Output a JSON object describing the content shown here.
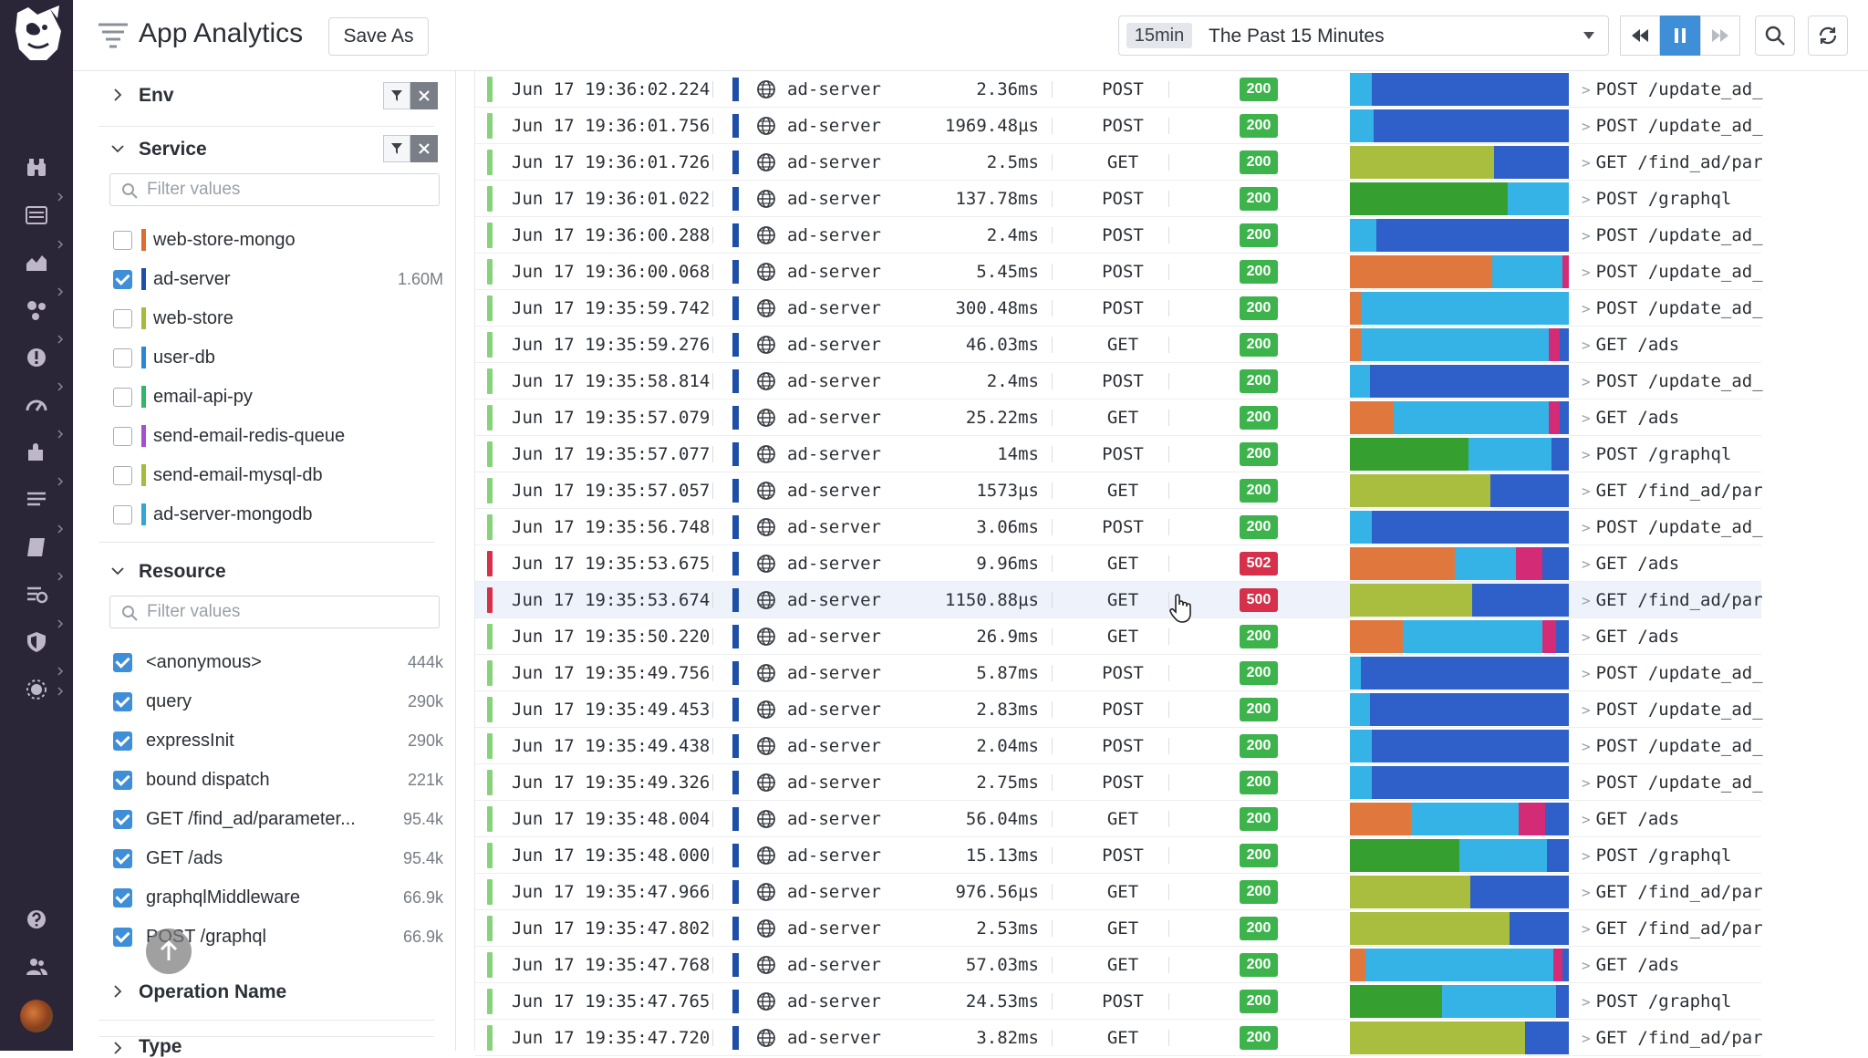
{
  "header": {
    "title": "App Analytics",
    "save_as_label": "Save As",
    "time_chip": "15min",
    "time_range": "The Past 15 Minutes"
  },
  "rail": {
    "icons": [
      "binoculars-icon",
      "list-icon",
      "chart-icon",
      "services-icon",
      "alert-icon",
      "gauge-icon",
      "puzzle-icon",
      "logs-icon",
      "notebook-icon",
      "apm-icon",
      "shield-icon",
      "security-icon",
      "help-icon",
      "team-icon"
    ]
  },
  "facets": {
    "env": {
      "title": "Env"
    },
    "service": {
      "title": "Service",
      "filter_placeholder": "Filter values",
      "items": [
        {
          "label": "web-store-mongo",
          "checked": false,
          "color": "#e06b2f",
          "count": ""
        },
        {
          "label": "ad-server",
          "checked": true,
          "color": "#1e4fa8",
          "count": "1.60M"
        },
        {
          "label": "web-store",
          "checked": false,
          "color": "#a3bd3a",
          "count": ""
        },
        {
          "label": "user-db",
          "checked": false,
          "color": "#2b86d8",
          "count": ""
        },
        {
          "label": "email-api-py",
          "checked": false,
          "color": "#2fb86a",
          "count": ""
        },
        {
          "label": "send-email-redis-queue",
          "checked": false,
          "color": "#a64fd0",
          "count": ""
        },
        {
          "label": "send-email-mysql-db",
          "checked": false,
          "color": "#a3bd3a",
          "count": ""
        },
        {
          "label": "ad-server-mongodb",
          "checked": false,
          "color": "#2fa8d8",
          "count": ""
        }
      ]
    },
    "resource": {
      "title": "Resource",
      "filter_placeholder": "Filter values",
      "items": [
        {
          "label": "<anonymous>",
          "checked": true,
          "count": "444k"
        },
        {
          "label": "query",
          "checked": true,
          "count": "290k"
        },
        {
          "label": "expressInit",
          "checked": true,
          "count": "290k"
        },
        {
          "label": "bound dispatch",
          "checked": true,
          "count": "221k"
        },
        {
          "label": "GET /find_ad/parameter...",
          "checked": true,
          "count": "95.4k"
        },
        {
          "label": "GET /ads",
          "checked": true,
          "count": "95.4k"
        },
        {
          "label": "graphqlMiddleware",
          "checked": true,
          "count": "66.9k"
        },
        {
          "label": "POST /graphql",
          "checked": true,
          "count": "66.9k"
        }
      ]
    },
    "operation": {
      "title": "Operation Name"
    },
    "type": {
      "title": "Type"
    }
  },
  "colors": {
    "blue_dark": "#2f5fc8",
    "blue_light": "#35b3e6",
    "orange": "#e0773d",
    "olive": "#a9bd3f",
    "green": "#35a02f",
    "magenta": "#d42b76",
    "ok": "#3db34c",
    "error": "#d6304a"
  },
  "rows": [
    {
      "date": "Jun 17 19:36:02.224",
      "service": "ad-server",
      "duration": "2.36ms",
      "method": "POST",
      "status": "200",
      "resource": "POST /update_ad_",
      "latency": [
        [
          "lb",
          0.1
        ],
        [
          "bd",
          0.9
        ]
      ]
    },
    {
      "date": "Jun 17 19:36:01.756",
      "service": "ad-server",
      "duration": "1969.48µs",
      "method": "POST",
      "status": "200",
      "resource": "POST /update_ad_",
      "latency": [
        [
          "lb",
          0.11
        ],
        [
          "bd",
          0.89
        ]
      ]
    },
    {
      "date": "Jun 17 19:36:01.726",
      "service": "ad-server",
      "duration": "2.5ms",
      "method": "GET",
      "status": "200",
      "resource": "GET /find_ad/par",
      "latency": [
        [
          "ol",
          0.66
        ],
        [
          "bd",
          0.34
        ]
      ]
    },
    {
      "date": "Jun 17 19:36:01.022",
      "service": "ad-server",
      "duration": "137.78ms",
      "method": "POST",
      "status": "200",
      "resource": "POST /graphql",
      "latency": [
        [
          "gr",
          0.72
        ],
        [
          "lb",
          0.28
        ]
      ]
    },
    {
      "date": "Jun 17 19:36:00.288",
      "service": "ad-server",
      "duration": "2.4ms",
      "method": "POST",
      "status": "200",
      "resource": "POST /update_ad_",
      "latency": [
        [
          "lb",
          0.12
        ],
        [
          "bd",
          0.88
        ]
      ]
    },
    {
      "date": "Jun 17 19:36:00.068",
      "service": "ad-server",
      "duration": "5.45ms",
      "method": "POST",
      "status": "200",
      "resource": "POST /update_ad_",
      "latency": [
        [
          "or",
          0.65
        ],
        [
          "lb",
          0.32
        ],
        [
          "mg",
          0.03
        ]
      ]
    },
    {
      "date": "Jun 17 19:35:59.742",
      "service": "ad-server",
      "duration": "300.48ms",
      "method": "POST",
      "status": "200",
      "resource": "POST /update_ad_",
      "latency": [
        [
          "or",
          0.05
        ],
        [
          "lb",
          0.43
        ],
        [
          "lb",
          0.52
        ]
      ]
    },
    {
      "date": "Jun 17 19:35:59.276",
      "service": "ad-server",
      "duration": "46.03ms",
      "method": "GET",
      "status": "200",
      "resource": "GET /ads",
      "latency": [
        [
          "or",
          0.05
        ],
        [
          "lb",
          0.86
        ],
        [
          "mg",
          0.05
        ],
        [
          "bd",
          0.04
        ]
      ]
    },
    {
      "date": "Jun 17 19:35:58.814",
      "service": "ad-server",
      "duration": "2.4ms",
      "method": "POST",
      "status": "200",
      "resource": "POST /update_ad_",
      "latency": [
        [
          "lb",
          0.09
        ],
        [
          "bd",
          0.91
        ]
      ]
    },
    {
      "date": "Jun 17 19:35:57.079",
      "service": "ad-server",
      "duration": "25.22ms",
      "method": "GET",
      "status": "200",
      "resource": "GET /ads",
      "latency": [
        [
          "or",
          0.2
        ],
        [
          "lb",
          0.71
        ],
        [
          "mg",
          0.05
        ],
        [
          "bd",
          0.04
        ]
      ]
    },
    {
      "date": "Jun 17 19:35:57.077",
      "service": "ad-server",
      "duration": "14ms",
      "method": "POST",
      "status": "200",
      "resource": "POST /graphql",
      "latency": [
        [
          "gr",
          0.54
        ],
        [
          "lb",
          0.38
        ],
        [
          "bd",
          0.08
        ]
      ]
    },
    {
      "date": "Jun 17 19:35:57.057",
      "service": "ad-server",
      "duration": "1573µs",
      "method": "GET",
      "status": "200",
      "resource": "GET /find_ad/par",
      "latency": [
        [
          "ol",
          0.64
        ],
        [
          "bd",
          0.36
        ]
      ]
    },
    {
      "date": "Jun 17 19:35:56.748",
      "service": "ad-server",
      "duration": "3.06ms",
      "method": "POST",
      "status": "200",
      "resource": "POST /update_ad_",
      "latency": [
        [
          "lb",
          0.1
        ],
        [
          "bd",
          0.9
        ]
      ]
    },
    {
      "date": "Jun 17 19:35:53.675",
      "service": "ad-server",
      "duration": "9.96ms",
      "method": "GET",
      "status": "502",
      "resource": "GET /ads",
      "latency": [
        [
          "or",
          0.48
        ],
        [
          "lb",
          0.28
        ],
        [
          "mg",
          0.12
        ],
        [
          "bd",
          0.12
        ]
      ]
    },
    {
      "date": "Jun 17 19:35:53.674",
      "service": "ad-server",
      "duration": "1150.88µs",
      "method": "GET",
      "status": "500",
      "resource": "GET /find_ad/par",
      "latency": [
        [
          "ol",
          0.56
        ],
        [
          "bd",
          0.44
        ]
      ]
    },
    {
      "date": "Jun 17 19:35:50.220",
      "service": "ad-server",
      "duration": "26.9ms",
      "method": "GET",
      "status": "200",
      "resource": "GET /ads",
      "latency": [
        [
          "or",
          0.24
        ],
        [
          "lb",
          0.64
        ],
        [
          "mg",
          0.06
        ],
        [
          "bd",
          0.06
        ]
      ]
    },
    {
      "date": "Jun 17 19:35:49.756",
      "service": "ad-server",
      "duration": "5.87ms",
      "method": "POST",
      "status": "200",
      "resource": "POST /update_ad_",
      "latency": [
        [
          "lb",
          0.05
        ],
        [
          "bd",
          0.95
        ]
      ]
    },
    {
      "date": "Jun 17 19:35:49.453",
      "service": "ad-server",
      "duration": "2.83ms",
      "method": "POST",
      "status": "200",
      "resource": "POST /update_ad_",
      "latency": [
        [
          "lb",
          0.09
        ],
        [
          "bd",
          0.91
        ]
      ]
    },
    {
      "date": "Jun 17 19:35:49.438",
      "service": "ad-server",
      "duration": "2.04ms",
      "method": "POST",
      "status": "200",
      "resource": "POST /update_ad_",
      "latency": [
        [
          "lb",
          0.1
        ],
        [
          "bd",
          0.9
        ]
      ]
    },
    {
      "date": "Jun 17 19:35:49.326",
      "service": "ad-server",
      "duration": "2.75ms",
      "method": "POST",
      "status": "200",
      "resource": "POST /update_ad_",
      "latency": [
        [
          "lb",
          0.1
        ],
        [
          "bd",
          0.9
        ]
      ]
    },
    {
      "date": "Jun 17 19:35:48.004",
      "service": "ad-server",
      "duration": "56.04ms",
      "method": "GET",
      "status": "200",
      "resource": "GET /ads",
      "latency": [
        [
          "or",
          0.28
        ],
        [
          "lb",
          0.49
        ],
        [
          "mg",
          0.12
        ],
        [
          "bd",
          0.11
        ]
      ]
    },
    {
      "date": "Jun 17 19:35:48.000",
      "service": "ad-server",
      "duration": "15.13ms",
      "method": "POST",
      "status": "200",
      "resource": "POST /graphql",
      "latency": [
        [
          "gr",
          0.5
        ],
        [
          "lb",
          0.4
        ],
        [
          "bd",
          0.1
        ]
      ]
    },
    {
      "date": "Jun 17 19:35:47.966",
      "service": "ad-server",
      "duration": "976.56µs",
      "method": "GET",
      "status": "200",
      "resource": "GET /find_ad/par",
      "latency": [
        [
          "ol",
          0.55
        ],
        [
          "bd",
          0.45
        ]
      ]
    },
    {
      "date": "Jun 17 19:35:47.802",
      "service": "ad-server",
      "duration": "2.53ms",
      "method": "GET",
      "status": "200",
      "resource": "GET /find_ad/par",
      "latency": [
        [
          "ol",
          0.73
        ],
        [
          "bd",
          0.27
        ]
      ]
    },
    {
      "date": "Jun 17 19:35:47.768",
      "service": "ad-server",
      "duration": "57.03ms",
      "method": "GET",
      "status": "200",
      "resource": "GET /ads",
      "latency": [
        [
          "or",
          0.07
        ],
        [
          "lb",
          0.86
        ],
        [
          "mg",
          0.04
        ],
        [
          "bd",
          0.03
        ]
      ]
    },
    {
      "date": "Jun 17 19:35:47.765",
      "service": "ad-server",
      "duration": "24.53ms",
      "method": "POST",
      "status": "200",
      "resource": "POST /graphql",
      "latency": [
        [
          "gr",
          0.42
        ],
        [
          "lb",
          0.52
        ],
        [
          "bd",
          0.06
        ]
      ]
    },
    {
      "date": "Jun 17 19:35:47.720",
      "service": "ad-server",
      "duration": "3.82ms",
      "method": "GET",
      "status": "200",
      "resource": "GET /find_ad/par",
      "latency": [
        [
          "ol",
          0.8
        ],
        [
          "bd",
          0.2
        ]
      ]
    }
  ]
}
